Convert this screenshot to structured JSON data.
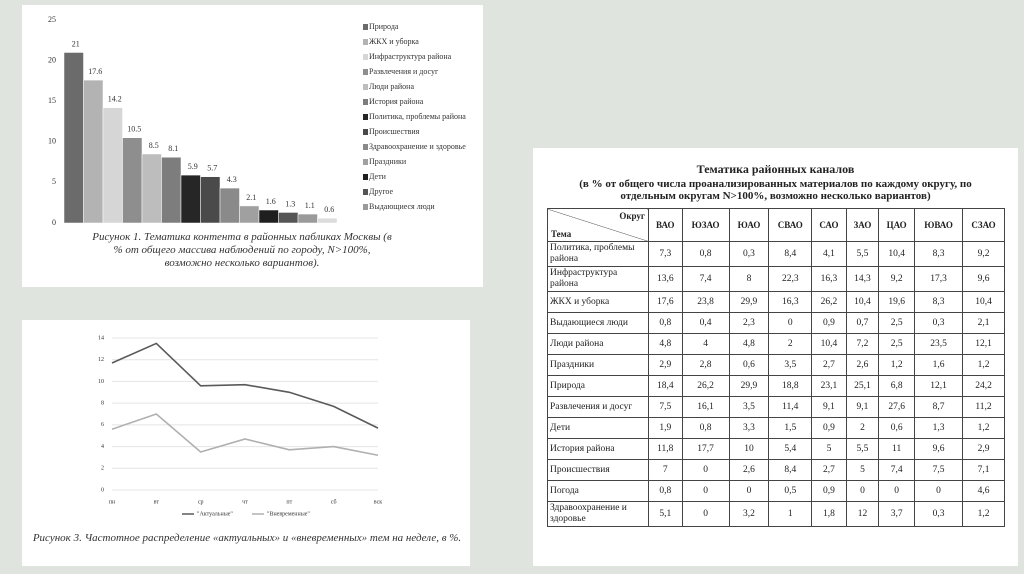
{
  "chart_data": [
    {
      "type": "bar",
      "categories": [
        "Природа",
        "ЖКХ и уборка",
        "Инфраструктура района",
        "Развлечения и досуг",
        "Люди района",
        "История района",
        "Политика, проблемы района",
        "Происшествия",
        "Здравоохранение и здоровье",
        "Праздники",
        "Дети",
        "Другое",
        "Выдающиеся люди",
        null
      ],
      "values": [
        21,
        17.6,
        14.2,
        10.5,
        8.5,
        8.1,
        5.9,
        5.7,
        4.3,
        2.1,
        1.6,
        1.3,
        1.1,
        0.6
      ],
      "colors": [
        "#6b6b6b",
        "#b3b3b3",
        "#d6d6d6",
        "#8e8e8e",
        "#bdbdbd",
        "#7d7d7d",
        "#262626",
        "#4a4a4a",
        "#8a8a8a",
        "#a0a0a0",
        "#1f1f1f",
        "#555555",
        "#9a9a9a",
        "#dcdcdc"
      ],
      "ylim": [
        0,
        25
      ],
      "yticks": [
        0,
        5,
        10,
        15,
        20,
        25
      ],
      "caption": "Рисунок 1. Тематика контента в районных пабликах Москвы (в % от общего массива наблюдений по городу, N>100%, возможно несколько вариантов)."
    },
    {
      "type": "line",
      "categories": [
        "пн",
        "вт",
        "ср",
        "чт",
        "пт",
        "сб",
        "вск"
      ],
      "series": [
        {
          "name": "\"Актуальные\"",
          "color": "#5a5a5a",
          "values": [
            11.7,
            13.5,
            9.6,
            9.7,
            9.0,
            7.7,
            5.7
          ]
        },
        {
          "name": "\"Вневременные\"",
          "color": "#b0b0b0",
          "values": [
            5.6,
            7.0,
            3.5,
            4.7,
            3.7,
            4.0,
            3.2
          ]
        }
      ],
      "ylim": [
        0,
        14
      ],
      "yticks": [
        0,
        2,
        4,
        6,
        8,
        10,
        12,
        14
      ],
      "caption": "Рисунок 3. Частотное распределение «актуальных» и «вневременных» тем на неделе, в %."
    }
  ],
  "table": {
    "title": "Тематика районных каналов",
    "subtitle": "(в % от общего числа проанализированных материалов по каждому округу, по отдельным округам N>100%, возможно несколько вариантов)",
    "corner_top": "Округ",
    "corner_bottom": "Тема",
    "columns": [
      "ВАО",
      "ЮЗАО",
      "ЮАО",
      "СВАО",
      "САО",
      "ЗАО",
      "ЦАО",
      "ЮВАО",
      "СЗАО"
    ],
    "rows": [
      [
        "Политика, проблемы района",
        "7,3",
        "0,8",
        "0,3",
        "8,4",
        "4,1",
        "5,5",
        "10,4",
        "8,3",
        "9,2"
      ],
      [
        "Инфраструктура района",
        "13,6",
        "7,4",
        "8",
        "22,3",
        "16,3",
        "14,3",
        "9,2",
        "17,3",
        "9,6"
      ],
      [
        "ЖКХ и уборка",
        "17,6",
        "23,8",
        "29,9",
        "16,3",
        "26,2",
        "10,4",
        "19,6",
        "8,3",
        "10,4"
      ],
      [
        "Выдающиеся люди",
        "0,8",
        "0,4",
        "2,3",
        "0",
        "0,9",
        "0,7",
        "2,5",
        "0,3",
        "2,1"
      ],
      [
        "Люди района",
        "4,8",
        "4",
        "4,8",
        "2",
        "10,4",
        "7,2",
        "2,5",
        "23,5",
        "12,1"
      ],
      [
        "Праздники",
        "2,9",
        "2,8",
        "0,6",
        "3,5",
        "2,7",
        "2,6",
        "1,2",
        "1,6",
        "1,2"
      ],
      [
        "Природа",
        "18,4",
        "26,2",
        "29,9",
        "18,8",
        "23,1",
        "25,1",
        "6,8",
        "12,1",
        "24,2"
      ],
      [
        "Развлечения и досуг",
        "7,5",
        "16,1",
        "3,5",
        "11,4",
        "9,1",
        "9,1",
        "27,6",
        "8,7",
        "11,2"
      ],
      [
        "Дети",
        "1,9",
        "0,8",
        "3,3",
        "1,5",
        "0,9",
        "2",
        "0,6",
        "1,3",
        "1,2"
      ],
      [
        "История района",
        "11,8",
        "17,7",
        "10",
        "5,4",
        "5",
        "5,5",
        "11",
        "9,6",
        "2,9"
      ],
      [
        "Происшествия",
        "7",
        "0",
        "2,6",
        "8,4",
        "2,7",
        "5",
        "7,4",
        "7,5",
        "7,1"
      ],
      [
        "Погода",
        "0,8",
        "0",
        "0",
        "0,5",
        "0,9",
        "0",
        "0",
        "0",
        "4,6"
      ],
      [
        "Здравоохранение и здоровье",
        "5,1",
        "0",
        "3,2",
        "1",
        "1,8",
        "12",
        "3,7",
        "0,3",
        "1,2"
      ]
    ]
  }
}
